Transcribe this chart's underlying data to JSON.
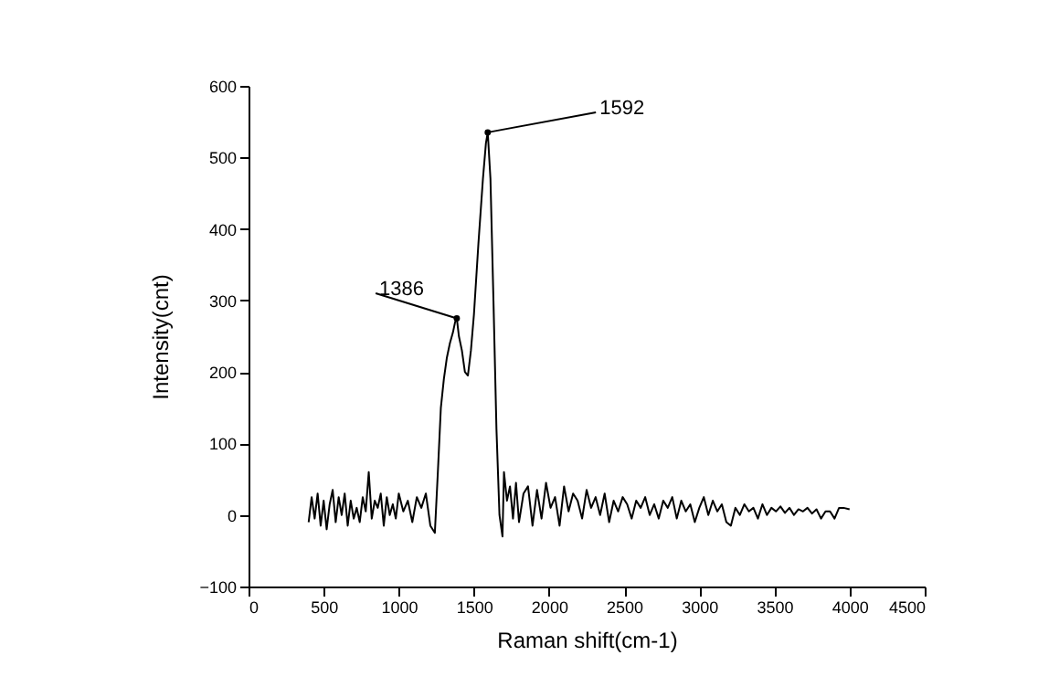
{
  "chart_data": {
    "type": "line",
    "xlabel": "Raman shift(cm-1)",
    "ylabel": "Intensity(cnt)",
    "x": [
      400,
      420,
      440,
      460,
      480,
      500,
      520,
      540,
      560,
      580,
      600,
      620,
      640,
      660,
      680,
      700,
      720,
      740,
      760,
      780,
      800,
      820,
      840,
      860,
      880,
      900,
      920,
      940,
      960,
      980,
      1000,
      1030,
      1060,
      1090,
      1120,
      1150,
      1180,
      1210,
      1240,
      1260,
      1280,
      1300,
      1320,
      1340,
      1360,
      1375,
      1386,
      1400,
      1420,
      1440,
      1460,
      1480,
      1500,
      1530,
      1560,
      1580,
      1592,
      1610,
      1630,
      1650,
      1670,
      1690,
      1700,
      1720,
      1740,
      1760,
      1780,
      1800,
      1830,
      1860,
      1890,
      1920,
      1950,
      1980,
      2010,
      2040,
      2070,
      2100,
      2130,
      2160,
      2190,
      2220,
      2250,
      2280,
      2310,
      2340,
      2370,
      2400,
      2430,
      2460,
      2490,
      2520,
      2550,
      2580,
      2610,
      2640,
      2670,
      2700,
      2730,
      2760,
      2790,
      2820,
      2850,
      2880,
      2910,
      2940,
      2970,
      3000,
      3030,
      3060,
      3090,
      3120,
      3150,
      3180,
      3210,
      3240,
      3270,
      3300,
      3330,
      3360,
      3390,
      3420,
      3450,
      3480,
      3510,
      3540,
      3570,
      3600,
      3630,
      3660,
      3690,
      3720,
      3750,
      3780,
      3810,
      3840,
      3870,
      3900,
      3930,
      3960,
      4000
    ],
    "values": [
      -10,
      25,
      -5,
      30,
      -15,
      20,
      -20,
      15,
      35,
      -10,
      25,
      0,
      30,
      -15,
      20,
      -5,
      10,
      -10,
      25,
      5,
      60,
      -5,
      20,
      10,
      30,
      -15,
      25,
      0,
      15,
      -5,
      30,
      5,
      20,
      -10,
      25,
      10,
      30,
      -15,
      -25,
      60,
      150,
      190,
      220,
      240,
      255,
      270,
      275,
      250,
      230,
      200,
      195,
      230,
      280,
      380,
      470,
      520,
      535,
      470,
      300,
      120,
      0,
      -30,
      60,
      20,
      40,
      -5,
      45,
      -10,
      30,
      40,
      -15,
      35,
      -5,
      45,
      10,
      25,
      -15,
      40,
      5,
      30,
      20,
      -5,
      35,
      10,
      25,
      0,
      30,
      -10,
      20,
      5,
      25,
      15,
      -5,
      20,
      10,
      25,
      0,
      15,
      -5,
      20,
      10,
      25,
      -5,
      20,
      5,
      15,
      -10,
      10,
      25,
      0,
      20,
      5,
      15,
      -10,
      -15,
      10,
      0,
      15,
      5,
      10,
      -5,
      15,
      0,
      10,
      5,
      12,
      3,
      10,
      0,
      8,
      5,
      10,
      2,
      8,
      -5,
      5,
      5,
      -5,
      10,
      10,
      8
    ],
    "color": "#000000",
    "xlim": [
      0,
      4500
    ],
    "xticks": [
      0,
      500,
      1000,
      1500,
      2000,
      2500,
      3000,
      3500,
      4000,
      4500
    ],
    "ylim": [
      -100,
      600
    ],
    "yticks": [
      -100,
      0,
      100,
      200,
      300,
      400,
      500,
      600
    ],
    "annotations": [
      {
        "text": "1386",
        "x": 1386,
        "y": 275
      },
      {
        "text": "1592",
        "x": 1592,
        "y": 535
      }
    ],
    "grid": false,
    "marker": "none",
    "line_style": "solid"
  }
}
